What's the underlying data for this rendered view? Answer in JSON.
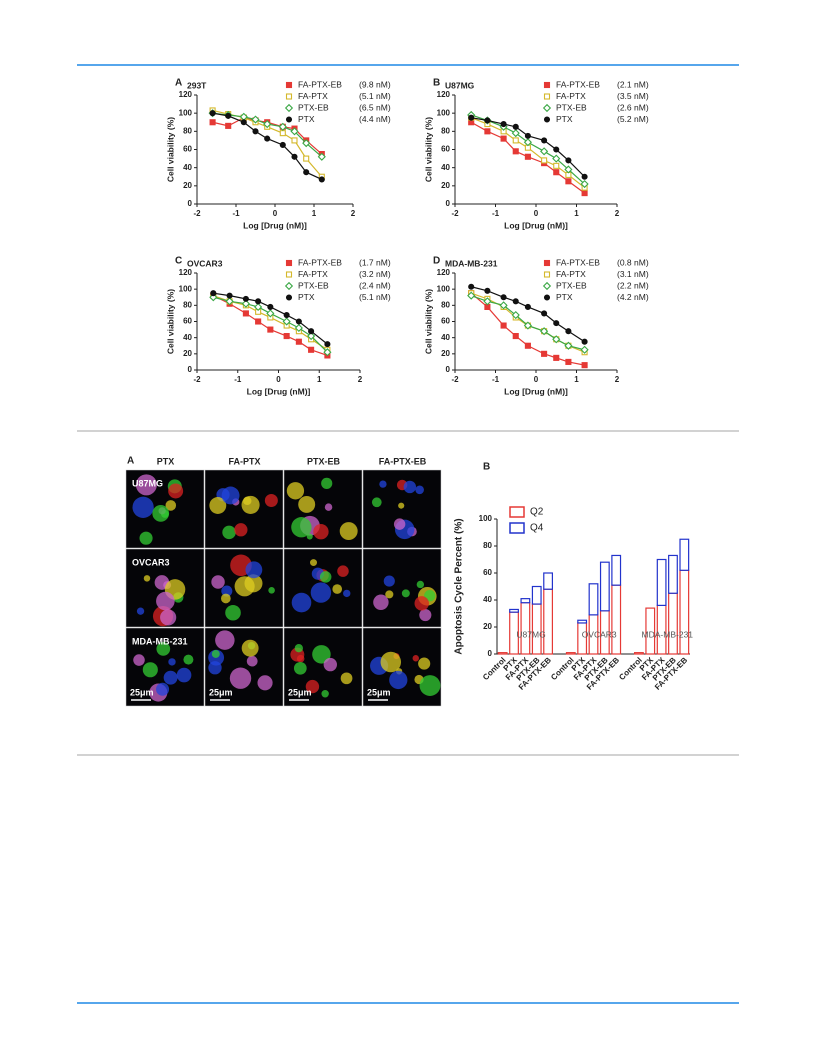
{
  "chart_data": [
    {
      "type": "line",
      "panel": "A",
      "title": "293T",
      "xlabel": "Log [Drug (nM)]",
      "ylabel": "Cell viability (%)",
      "xlim": [
        -2,
        2
      ],
      "xticks": [
        -2,
        -1,
        0,
        1,
        2
      ],
      "ylim": [
        0,
        120
      ],
      "yticks": [
        0,
        20,
        40,
        60,
        80,
        100,
        120
      ],
      "x": [
        -1.6,
        -1.2,
        -0.8,
        -0.5,
        -0.2,
        0.2,
        0.5,
        0.8,
        1.2
      ],
      "series": [
        {
          "name": "FA-PTX-EB",
          "ic50": "(9.8 nM)",
          "color": "#e53935",
          "marker": "square-filled",
          "values": [
            90,
            86,
            95,
            92,
            90,
            85,
            83,
            70,
            55
          ]
        },
        {
          "name": "FA-PTX",
          "ic50": "(5.1 nM)",
          "color": "#d4b82c",
          "marker": "square-open",
          "values": [
            103,
            99,
            95,
            90,
            85,
            78,
            70,
            50,
            30
          ]
        },
        {
          "name": "PTX-EB",
          "ic50": "(6.5 nM)",
          "color": "#3aa845",
          "marker": "diamond-open",
          "values": [
            100,
            98,
            96,
            93,
            88,
            85,
            80,
            67,
            52
          ]
        },
        {
          "name": "PTX",
          "ic50": "(4.4 nM)",
          "color": "#111111",
          "marker": "circle-filled",
          "values": [
            100,
            97,
            90,
            80,
            72,
            65,
            52,
            35,
            27
          ]
        }
      ]
    },
    {
      "type": "line",
      "panel": "B",
      "title": "U87MG",
      "xlabel": "Log [Drug (nM)]",
      "ylabel": "Cell viability (%)",
      "xlim": [
        -2,
        2
      ],
      "xticks": [
        -2,
        -1,
        0,
        1,
        2
      ],
      "ylim": [
        0,
        120
      ],
      "yticks": [
        0,
        20,
        40,
        60,
        80,
        100,
        120
      ],
      "x": [
        -1.6,
        -1.2,
        -0.8,
        -0.5,
        -0.2,
        0.2,
        0.5,
        0.8,
        1.2
      ],
      "series": [
        {
          "name": "FA-PTX-EB",
          "ic50": "(2.1 nM)",
          "color": "#e53935",
          "marker": "square-filled",
          "values": [
            90,
            80,
            72,
            58,
            52,
            45,
            35,
            25,
            12
          ]
        },
        {
          "name": "FA-PTX",
          "ic50": "(3.5 nM)",
          "color": "#d4b82c",
          "marker": "square-open",
          "values": [
            95,
            88,
            80,
            70,
            62,
            48,
            42,
            32,
            18
          ]
        },
        {
          "name": "PTX-EB",
          "ic50": "(2.6 nM)",
          "color": "#3aa845",
          "marker": "diamond-open",
          "values": [
            98,
            92,
            85,
            78,
            68,
            58,
            50,
            38,
            22
          ]
        },
        {
          "name": "PTX",
          "ic50": "(5.2 nM)",
          "color": "#111111",
          "marker": "circle-filled",
          "values": [
            95,
            92,
            88,
            85,
            75,
            70,
            60,
            48,
            30
          ]
        }
      ]
    },
    {
      "type": "line",
      "panel": "C",
      "title": "OVCAR3",
      "xlabel": "Log [Drug (nM)]",
      "ylabel": "Cell viability (%)",
      "xlim": [
        -2,
        2
      ],
      "xticks": [
        -2,
        -1,
        0,
        1,
        2
      ],
      "ylim": [
        0,
        120
      ],
      "yticks": [
        0,
        20,
        40,
        60,
        80,
        100,
        120
      ],
      "x": [
        -1.6,
        -1.2,
        -0.8,
        -0.5,
        -0.2,
        0.2,
        0.5,
        0.8,
        1.2
      ],
      "series": [
        {
          "name": "FA-PTX-EB",
          "ic50": "(1.7 nM)",
          "color": "#e53935",
          "marker": "square-filled",
          "values": [
            92,
            82,
            70,
            60,
            50,
            42,
            35,
            25,
            18
          ]
        },
        {
          "name": "FA-PTX",
          "ic50": "(3.2 nM)",
          "color": "#d4b82c",
          "marker": "square-open",
          "values": [
            92,
            85,
            80,
            72,
            65,
            55,
            48,
            38,
            25
          ]
        },
        {
          "name": "PTX-EB",
          "ic50": "(2.4 nM)",
          "color": "#3aa845",
          "marker": "diamond-open",
          "values": [
            90,
            85,
            82,
            78,
            70,
            60,
            52,
            42,
            22
          ]
        },
        {
          "name": "PTX",
          "ic50": "(5.1 nM)",
          "color": "#111111",
          "marker": "circle-filled",
          "values": [
            95,
            92,
            88,
            85,
            78,
            68,
            60,
            48,
            32
          ]
        }
      ]
    },
    {
      "type": "line",
      "panel": "D",
      "title": "MDA-MB-231",
      "xlabel": "Log [Drug (nM)]",
      "ylabel": "Cell viability (%)",
      "xlim": [
        -2,
        2
      ],
      "xticks": [
        -2,
        -1,
        0,
        1,
        2
      ],
      "ylim": [
        0,
        120
      ],
      "yticks": [
        0,
        20,
        40,
        60,
        80,
        100,
        120
      ],
      "x": [
        -1.6,
        -1.2,
        -0.8,
        -0.5,
        -0.2,
        0.2,
        0.5,
        0.8,
        1.2
      ],
      "series": [
        {
          "name": "FA-PTX-EB",
          "ic50": "(0.8 nM)",
          "color": "#e53935",
          "marker": "square-filled",
          "values": [
            95,
            78,
            55,
            42,
            30,
            20,
            15,
            10,
            6
          ]
        },
        {
          "name": "FA-PTX",
          "ic50": "(3.1 nM)",
          "color": "#d4b82c",
          "marker": "square-open",
          "values": [
            95,
            88,
            78,
            65,
            55,
            48,
            38,
            30,
            22
          ]
        },
        {
          "name": "PTX-EB",
          "ic50": "(2.2 nM)",
          "color": "#3aa845",
          "marker": "diamond-open",
          "values": [
            92,
            85,
            80,
            68,
            55,
            48,
            38,
            30,
            25
          ]
        },
        {
          "name": "PTX",
          "ic50": "(4.2 nM)",
          "color": "#111111",
          "marker": "circle-filled",
          "values": [
            103,
            98,
            90,
            85,
            78,
            70,
            58,
            48,
            35
          ]
        }
      ]
    },
    {
      "type": "bar",
      "stacked": true,
      "panel": "B",
      "ylabel": "Apoptosis Cycle Percent (%)",
      "ylim": [
        0,
        100
      ],
      "yticks": [
        0,
        20,
        40,
        60,
        80,
        100
      ],
      "groups": [
        "U87MG",
        "OVCAR3",
        "MDA-MB-231"
      ],
      "categories": [
        "Control",
        "PTX",
        "FA-PTX",
        "PTX-EB",
        "FA-PTX-EB",
        "Control",
        "PTX",
        "FA-PTX",
        "PTX-EB",
        "FA-PTX-EB",
        "Control",
        "PTX",
        "FA-PTX",
        "PTX-EB",
        "FA-PTX-EB"
      ],
      "series": [
        {
          "name": "Q2",
          "color": "#e53935",
          "values": [
            1,
            31,
            38,
            37,
            48,
            1,
            23,
            29,
            32,
            51,
            1,
            34,
            36,
            45,
            62
          ]
        },
        {
          "name": "Q4",
          "color": "#2233cc",
          "values": [
            0,
            2,
            3,
            13,
            12,
            0,
            2,
            23,
            36,
            22,
            0,
            0,
            34,
            28,
            23
          ]
        }
      ]
    }
  ],
  "micrographs": {
    "panel": "A",
    "columns": [
      "PTX",
      "FA-PTX",
      "PTX-EB",
      "FA-PTX-EB"
    ],
    "rows": [
      "U87MG",
      "OVCAR3",
      "MDA-MB-231"
    ],
    "scale_bar": "25μm"
  }
}
